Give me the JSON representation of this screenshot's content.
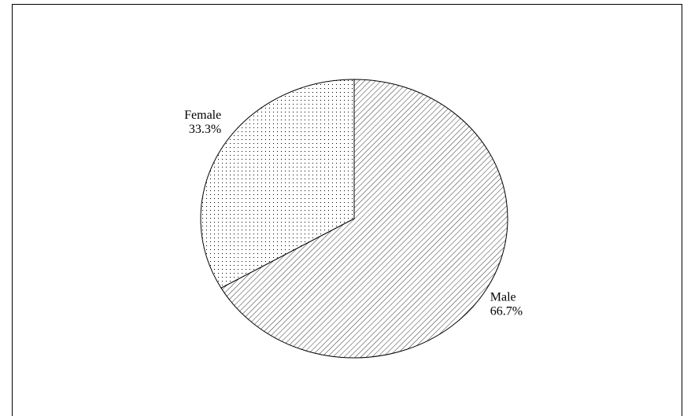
{
  "chart_data": {
    "type": "pie",
    "categories": [
      "Male",
      "Female"
    ],
    "values": [
      66.7,
      33.3
    ],
    "value_labels": [
      "66.7%",
      "33.3%"
    ],
    "patterns": [
      "hatch",
      "dots"
    ],
    "start_angle": 90,
    "direction": "clockwise"
  }
}
